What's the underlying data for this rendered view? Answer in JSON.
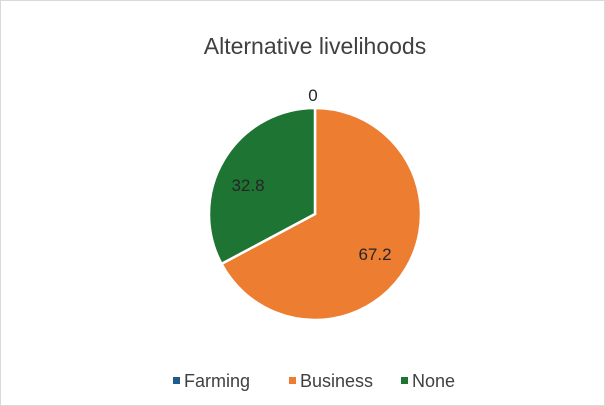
{
  "chart_data": {
    "type": "pie",
    "title": "Alternative livelihoods",
    "categories": [
      "Farming",
      "Business",
      "None"
    ],
    "values": [
      0,
      67.2,
      32.8
    ],
    "data_labels": [
      "0",
      "67.2",
      "32.8"
    ],
    "colors": [
      "#1f5c8b",
      "#ed7d31",
      "#1e7433"
    ],
    "legend_position": "bottom"
  }
}
